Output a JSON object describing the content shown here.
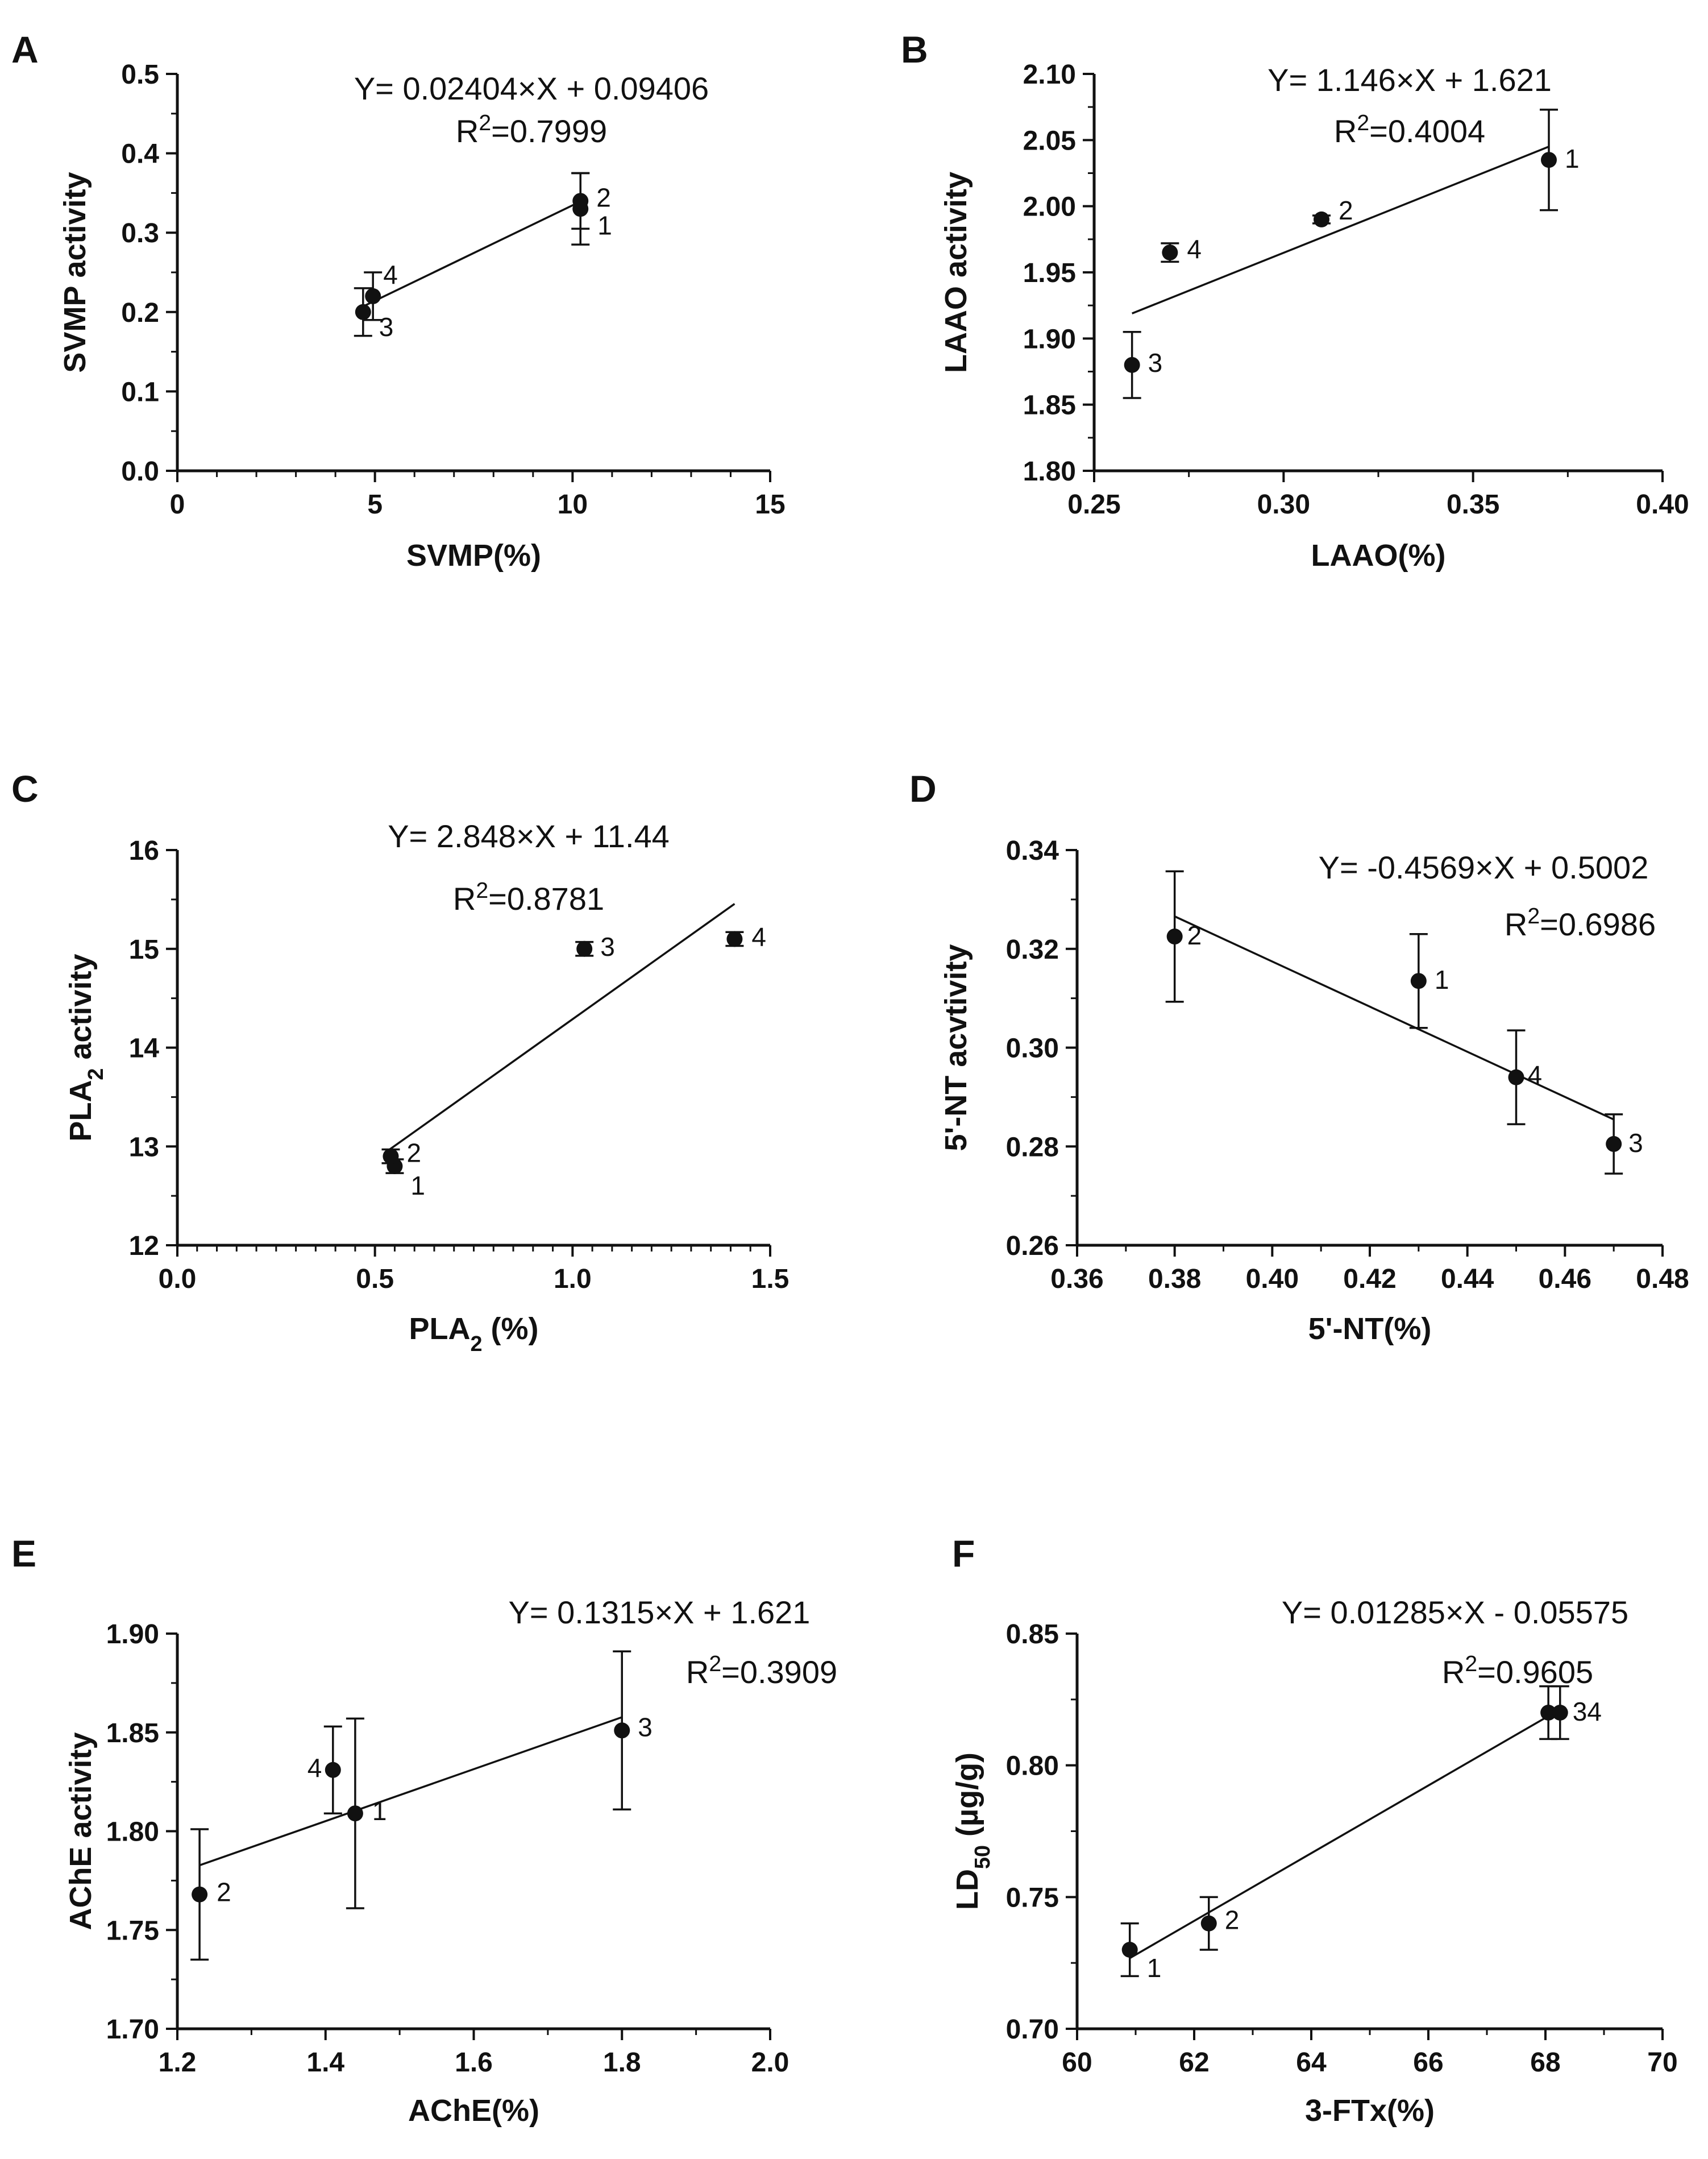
{
  "chart_data": [
    {
      "panel": "A",
      "type": "scatter",
      "xlabel": "SVMP(%)",
      "ylabel": "SVMP activity",
      "xlim": [
        0,
        15
      ],
      "ylim": [
        0.0,
        0.5
      ],
      "xticks": [
        "0",
        "5",
        "10",
        "15"
      ],
      "yticks": [
        "0.0",
        "0.1",
        "0.2",
        "0.3",
        "0.4",
        "0.5"
      ],
      "equation": "Y= 0.02404×X + 0.09406",
      "r2_prefix": "R",
      "r2_sup": "2",
      "r2_value": "=0.7999",
      "fit": {
        "slope": 0.02404,
        "intercept": 0.09406,
        "x_range": [
          4.7,
          10.2
        ]
      },
      "points": [
        {
          "label": "1",
          "x": 10.2,
          "y": 0.33,
          "err": 0.045
        },
        {
          "label": "2",
          "x": 10.2,
          "y": 0.34,
          "err": 0.035
        },
        {
          "label": "3",
          "x": 4.7,
          "y": 0.2,
          "err": 0.03
        },
        {
          "label": "4",
          "x": 4.95,
          "y": 0.22,
          "err": 0.03
        }
      ]
    },
    {
      "panel": "B",
      "type": "scatter",
      "xlabel": "LAAO(%)",
      "ylabel": "LAAO activity",
      "xlim": [
        0.25,
        0.4
      ],
      "ylim": [
        1.8,
        2.1
      ],
      "xticks": [
        "0.25",
        "0.30",
        "0.35",
        "0.40"
      ],
      "yticks": [
        "1.80",
        "1.85",
        "1.90",
        "1.95",
        "2.00",
        "2.05",
        "2.10"
      ],
      "equation": "Y= 1.146×X + 1.621",
      "r2_prefix": "R",
      "r2_sup": "2",
      "r2_value": "=0.4004",
      "fit": {
        "slope": 1.146,
        "intercept": 1.621,
        "x_range": [
          0.26,
          0.37
        ]
      },
      "points": [
        {
          "label": "1",
          "x": 0.37,
          "y": 2.035,
          "err": 0.038
        },
        {
          "label": "2",
          "x": 0.31,
          "y": 1.99,
          "err": 0.003
        },
        {
          "label": "3",
          "x": 0.26,
          "y": 1.88,
          "err": 0.025
        },
        {
          "label": "4",
          "x": 0.27,
          "y": 1.965,
          "err": 0.007
        }
      ]
    },
    {
      "panel": "C",
      "type": "scatter",
      "xlabel": "PLA",
      "xlabel_sub": "2",
      "xlabel_suffix": " (%)",
      "ylabel": "PLA",
      "ylabel_sub": "2",
      "ylabel_suffix": " activity",
      "xlim": [
        0.0,
        1.5
      ],
      "ylim": [
        12,
        16
      ],
      "xticks": [
        "0.0",
        "0.5",
        "1.0",
        "1.5"
      ],
      "yticks": [
        "12",
        "13",
        "14",
        "15",
        "16"
      ],
      "equation": "Y= 2.848×X + 11.44",
      "r2_prefix": "R",
      "r2_sup": "2",
      "r2_value": "=0.8781",
      "fit": {
        "slope": 2.848,
        "intercept": 11.44,
        "x_range": [
          0.53,
          1.41
        ]
      },
      "points": [
        {
          "label": "1",
          "x": 0.55,
          "y": 12.8,
          "err": 0.07
        },
        {
          "label": "2",
          "x": 0.54,
          "y": 12.9,
          "err": 0.07
        },
        {
          "label": "3",
          "x": 1.03,
          "y": 15.0,
          "err": 0.07
        },
        {
          "label": "4",
          "x": 1.41,
          "y": 15.1,
          "err": 0.07
        }
      ]
    },
    {
      "panel": "D",
      "type": "scatter",
      "xlabel": "5'-NT(%)",
      "ylabel": "5'-NT acvtivity",
      "xlim": [
        0.36,
        0.48
      ],
      "ylim": [
        0.26,
        0.34
      ],
      "xticks": [
        "0.36",
        "0.38",
        "0.40",
        "0.42",
        "0.44",
        "0.46",
        "0.48"
      ],
      "yticks": [
        "0.26",
        "0.28",
        "0.30",
        "0.32",
        "0.34"
      ],
      "equation": "Y= -0.4569×X + 0.5002",
      "r2_prefix": "R",
      "r2_sup": "2",
      "r2_value": "=0.6986",
      "fit": {
        "slope": -0.4569,
        "intercept": 0.5002,
        "x_range": [
          0.38,
          0.47
        ]
      },
      "points": [
        {
          "label": "1",
          "x": 0.43,
          "y": 0.3135,
          "err": 0.0095
        },
        {
          "label": "2",
          "x": 0.38,
          "y": 0.3225,
          "err": 0.0132
        },
        {
          "label": "3",
          "x": 0.47,
          "y": 0.2805,
          "err": 0.006
        },
        {
          "label": "4",
          "x": 0.45,
          "y": 0.294,
          "err": 0.0095
        }
      ]
    },
    {
      "panel": "E",
      "type": "scatter",
      "xlabel": "AChE(%)",
      "ylabel": "AChE activity",
      "xlim": [
        1.2,
        2.0
      ],
      "ylim": [
        1.7,
        1.9
      ],
      "xticks": [
        "1.2",
        "1.4",
        "1.6",
        "1.8",
        "2.0"
      ],
      "yticks": [
        "1.70",
        "1.75",
        "1.80",
        "1.85",
        "1.90"
      ],
      "equation": "Y= 0.1315×X + 1.621",
      "r2_prefix": "R",
      "r2_sup": "2",
      "r2_value": "=0.3909",
      "fit": {
        "slope": 0.1315,
        "intercept": 1.621,
        "x_range": [
          1.23,
          1.8
        ]
      },
      "points": [
        {
          "label": "1",
          "x": 1.44,
          "y": 1.809,
          "err": 0.048
        },
        {
          "label": "2",
          "x": 1.23,
          "y": 1.768,
          "err": 0.033
        },
        {
          "label": "3",
          "x": 1.8,
          "y": 1.851,
          "err": 0.04
        },
        {
          "label": "4",
          "x": 1.41,
          "y": 1.831,
          "err": 0.022
        }
      ]
    },
    {
      "panel": "F",
      "type": "scatter",
      "xlabel": "3-FTx(%)",
      "ylabel": "LD",
      "ylabel_sub": "50",
      "ylabel_suffix": " (µg/g)",
      "xlim": [
        60,
        70
      ],
      "ylim": [
        0.7,
        0.85
      ],
      "xticks": [
        "60",
        "62",
        "64",
        "66",
        "68",
        "70"
      ],
      "yticks": [
        "0.70",
        "0.75",
        "0.80",
        "0.85"
      ],
      "equation": "Y= 0.01285×X - 0.05575",
      "r2_prefix": "R",
      "r2_sup": "2",
      "r2_value": "=0.9605",
      "fit": {
        "slope": 0.01285,
        "intercept": -0.05575,
        "x_range": [
          60.9,
          68.1
        ]
      },
      "points": [
        {
          "label": "1",
          "x": 60.9,
          "y": 0.73,
          "err": 0.01
        },
        {
          "label": "2",
          "x": 62.25,
          "y": 0.74,
          "err": 0.01
        },
        {
          "label": "3",
          "x": 68.05,
          "y": 0.82,
          "err": 0.01
        },
        {
          "label": "4",
          "x": 68.25,
          "y": 0.82,
          "err": 0.01
        }
      ]
    }
  ],
  "point_label_text": {
    "A": [
      "1",
      "2",
      "3",
      "4"
    ],
    "B": [
      "1",
      "2",
      "3",
      "4"
    ],
    "C": [
      "1",
      "2",
      "3",
      "4"
    ],
    "D": [
      "1",
      "2",
      "3",
      "4"
    ],
    "E": [
      "1",
      "2",
      "3",
      "4"
    ],
    "F": [
      "1",
      "2",
      "34"
    ]
  }
}
